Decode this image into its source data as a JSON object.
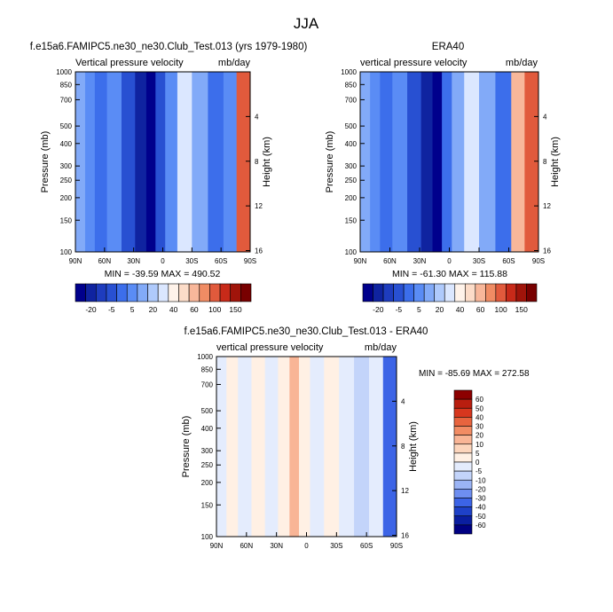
{
  "figure": {
    "title": "JJA"
  },
  "colors": {
    "main_scale": [
      "#00008c",
      "#0f23a0",
      "#1e3cbe",
      "#2850d2",
      "#3c6eeb",
      "#5a8cf5",
      "#82aaf8",
      "#afcafc",
      "#dbe7ff",
      "#fff3ea",
      "#fcdcc8",
      "#f8b79a",
      "#f08c64",
      "#e15a3c",
      "#c82a19",
      "#a0140a",
      "#780000"
    ],
    "diff_scale": [
      "#000082",
      "#0a1ea0",
      "#1e41c8",
      "#3c64e6",
      "#6e8ef0",
      "#9bb4f5",
      "#c3d4fa",
      "#e4ecfd",
      "#fff0e4",
      "#fcd5bc",
      "#f9b596",
      "#f28c64",
      "#e8643e",
      "#d7371e",
      "#b91e0f",
      "#8c0000"
    ]
  },
  "chart_data": [
    {
      "type": "heatmap",
      "name": "panel-model",
      "title": "f.e15a6.FAMIPC5.ne30_ne30.Club_Test.013 (yrs 1979-1980)",
      "subtitle_left": "Vertical pressure velocity",
      "subtitle_right": "mb/day",
      "xlabel": "",
      "ylabel": "Pressure (mb)",
      "y2label": "Height (km)",
      "x_ticks": [
        "90N",
        "60N",
        "30N",
        "0",
        "30S",
        "60S",
        "90S"
      ],
      "x_range": [
        90,
        -90
      ],
      "y_ticks": [
        100,
        150,
        200,
        250,
        300,
        400,
        500,
        700,
        850,
        1000
      ],
      "y_scale": "log",
      "y_range": [
        1000,
        100
      ],
      "y2_ticks": [
        4,
        8,
        12,
        16
      ],
      "stats": "MIN = -39.59  MAX = 490.52",
      "colorbar_labels": [
        "-20",
        "-5",
        "5",
        "20",
        "40",
        "60",
        "100",
        "150"
      ],
      "colorbar_orientation": "horizontal",
      "columns": [
        {
          "lat": 85,
          "level": 6
        },
        {
          "lat": 75,
          "level": 5
        },
        {
          "lat": 65,
          "level": 4
        },
        {
          "lat": 50,
          "level": 5
        },
        {
          "lat": 35,
          "level": 3
        },
        {
          "lat": 22,
          "level": 1
        },
        {
          "lat": 12,
          "level": 0
        },
        {
          "lat": 3,
          "level": 3
        },
        {
          "lat": -8,
          "level": 5
        },
        {
          "lat": -22,
          "level": 8
        },
        {
          "lat": -38,
          "level": 6
        },
        {
          "lat": -55,
          "level": 4
        },
        {
          "lat": -70,
          "level": 5
        },
        {
          "lat": -82,
          "level": 13
        }
      ]
    },
    {
      "type": "heatmap",
      "name": "panel-obs",
      "title": "ERA40",
      "subtitle_left": "vertical pressure velocity",
      "subtitle_right": "mb/day",
      "xlabel": "",
      "ylabel": "Pressure (mb)",
      "y2label": "Height (km)",
      "x_ticks": [
        "90N",
        "60N",
        "30N",
        "0",
        "30S",
        "60S",
        "90S"
      ],
      "x_range": [
        90,
        -90
      ],
      "y_ticks": [
        100,
        150,
        200,
        250,
        300,
        400,
        500,
        700,
        850,
        1000
      ],
      "y_scale": "log",
      "y_range": [
        1000,
        100
      ],
      "y2_ticks": [
        4,
        8,
        12,
        16
      ],
      "stats": "MIN = -61.30  MAX = 115.88",
      "colorbar_labels": [
        "-20",
        "-5",
        "5",
        "20",
        "40",
        "60",
        "100",
        "150"
      ],
      "colorbar_orientation": "horizontal",
      "columns": [
        {
          "lat": 85,
          "level": 6
        },
        {
          "lat": 75,
          "level": 5
        },
        {
          "lat": 65,
          "level": 4
        },
        {
          "lat": 50,
          "level": 5
        },
        {
          "lat": 35,
          "level": 3
        },
        {
          "lat": 22,
          "level": 1
        },
        {
          "lat": 12,
          "level": 0
        },
        {
          "lat": 3,
          "level": 4
        },
        {
          "lat": -8,
          "level": 6
        },
        {
          "lat": -22,
          "level": 8
        },
        {
          "lat": -38,
          "level": 6
        },
        {
          "lat": -55,
          "level": 4
        },
        {
          "lat": -70,
          "level": 11
        },
        {
          "lat": -82,
          "level": 13
        }
      ]
    },
    {
      "type": "heatmap",
      "name": "panel-diff",
      "title": "f.e15a6.FAMIPC5.ne30_ne30.Club_Test.013 - ERA40",
      "subtitle_left": "vertical pressure velocity",
      "subtitle_right": "mb/day",
      "xlabel": "",
      "ylabel": "Pressure (mb)",
      "y2label": "Height (km)",
      "x_ticks": [
        "90N",
        "60N",
        "30N",
        "0",
        "30S",
        "60S",
        "90S"
      ],
      "x_range": [
        90,
        -90
      ],
      "y_ticks": [
        100,
        150,
        200,
        250,
        300,
        400,
        500,
        700,
        850,
        1000
      ],
      "y_scale": "log",
      "y_range": [
        1000,
        100
      ],
      "y2_ticks": [
        4,
        8,
        12,
        16
      ],
      "stats": "MIN = -85.69  MAX = 272.58",
      "colorbar_labels": [
        "60",
        "50",
        "40",
        "30",
        "20",
        "10",
        "5",
        "0",
        "-5",
        "-10",
        "-20",
        "-30",
        "-40",
        "-50",
        "-60"
      ],
      "colorbar_orientation": "vertical",
      "columns": [
        {
          "lat": 85,
          "level": 7
        },
        {
          "lat": 75,
          "level": 8
        },
        {
          "lat": 62,
          "level": 7
        },
        {
          "lat": 48,
          "level": 8
        },
        {
          "lat": 35,
          "level": 7
        },
        {
          "lat": 22,
          "level": 8
        },
        {
          "lat": 12,
          "level": 10
        },
        {
          "lat": 3,
          "level": 8
        },
        {
          "lat": -10,
          "level": 7
        },
        {
          "lat": -25,
          "level": 8
        },
        {
          "lat": -40,
          "level": 7
        },
        {
          "lat": -55,
          "level": 6
        },
        {
          "lat": -70,
          "level": 7
        },
        {
          "lat": -83,
          "level": 3
        }
      ]
    }
  ]
}
